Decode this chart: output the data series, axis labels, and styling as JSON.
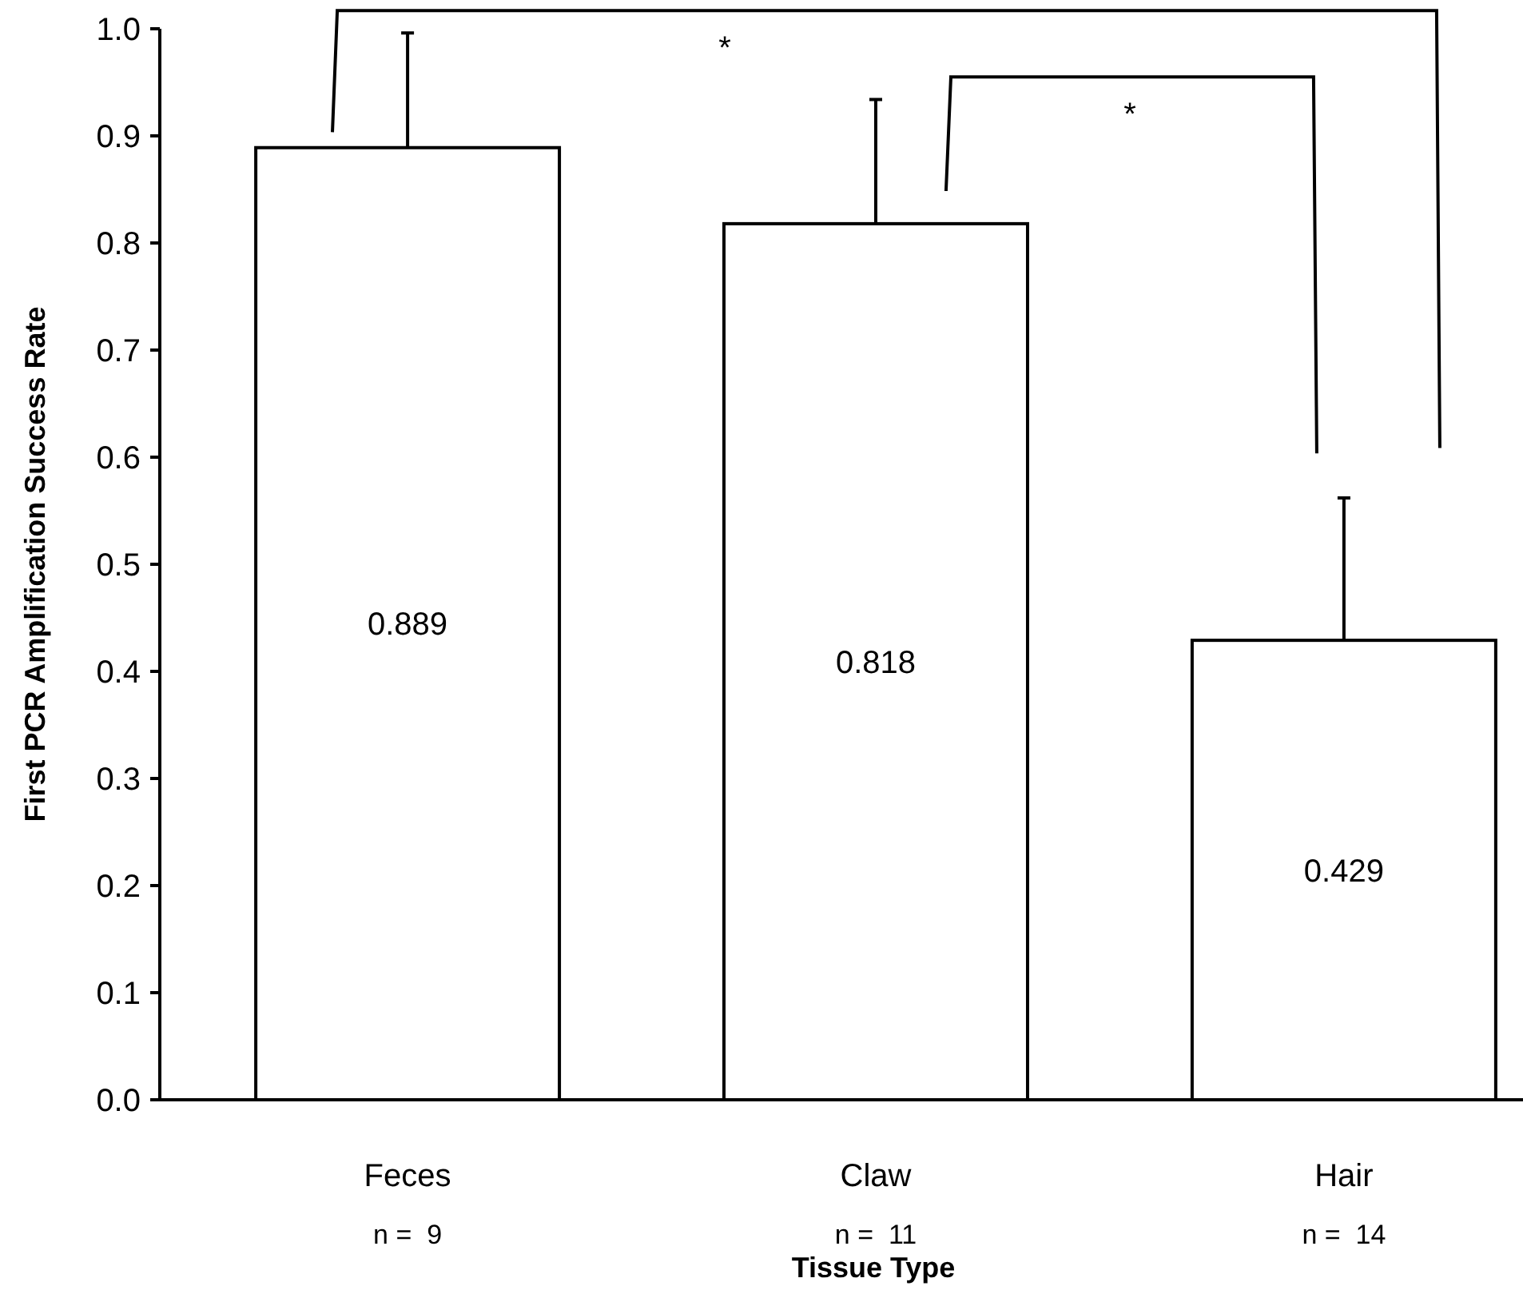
{
  "chart_data": {
    "type": "bar",
    "xlabel": "Tissue Type",
    "ylabel": "First PCR Amplification Success Rate",
    "categories": [
      "Feces",
      "Claw",
      "Hair"
    ],
    "values": [
      0.889,
      0.818,
      0.429
    ],
    "color": "#ffffff",
    "errors": [
      [
        0.889,
        0.996
      ],
      [
        0.818,
        0.934
      ],
      [
        0.429,
        0.562
      ]
    ],
    "data_labels": true,
    "ylim": [
      0,
      1
    ],
    "yticks": [
      {
        "value": 0,
        "label": "0.0"
      },
      {
        "value": 0.1,
        "label": "0.1"
      },
      {
        "value": 0.2,
        "label": "0.2"
      },
      {
        "value": 0.3,
        "label": "0.3"
      },
      {
        "value": 0.4,
        "label": "0.4"
      },
      {
        "value": 0.5,
        "label": "0.5"
      },
      {
        "value": 0.6,
        "label": "0.6"
      },
      {
        "value": 0.7,
        "label": "0.7"
      },
      {
        "value": 0.8,
        "label": "0.8"
      },
      {
        "value": 0.9,
        "label": "0.9"
      },
      {
        "value": 1,
        "label": "1.0"
      }
    ],
    "annotations": [
      "n =  9",
      "n =  11",
      "n =  14",
      "*",
      "*"
    ]
  }
}
